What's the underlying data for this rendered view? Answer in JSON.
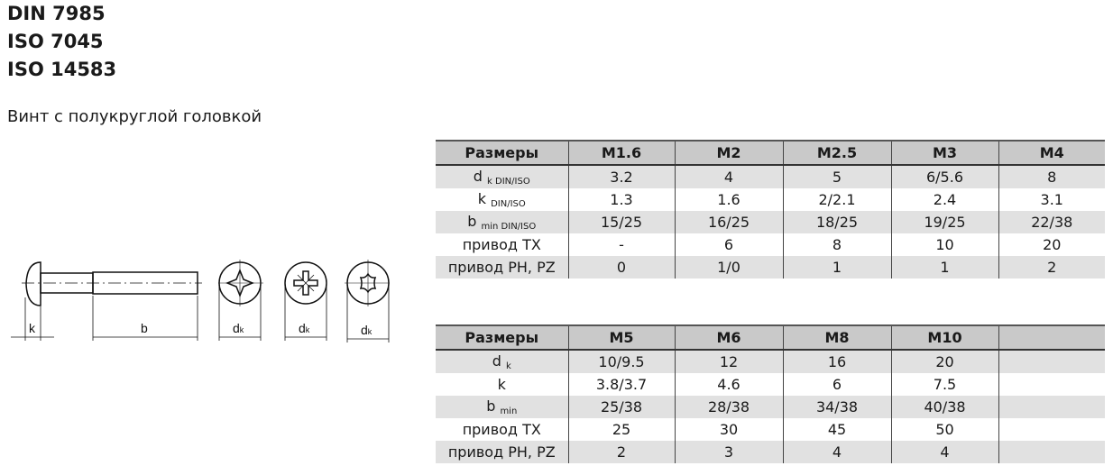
{
  "standards": [
    "DIN 7985",
    "ISO 7045",
    "ISO 14583"
  ],
  "subtitle": "Винт с полукруглой головкой",
  "drawing": {
    "labels": {
      "k": "k",
      "b": "b",
      "dk": "d",
      "dk_sub": "k"
    },
    "views": [
      "phillips-cross-recess",
      "pozidriv-recess",
      "torx-recess"
    ]
  },
  "table1": {
    "header": [
      "Размеры",
      "M1.6",
      "M2",
      "M2.5",
      "M3",
      "M4"
    ],
    "rows": [
      {
        "label": "d",
        "label_sub": "k DIN/ISO",
        "values": [
          "3.2",
          "4",
          "5",
          "6/5.6",
          "8"
        ]
      },
      {
        "label": "k",
        "label_sub": "DIN/ISO",
        "values": [
          "1.3",
          "1.6",
          "2/2.1",
          "2.4",
          "3.1"
        ]
      },
      {
        "label": "b",
        "label_sub": "min DIN/ISO",
        "values": [
          "15/25",
          "16/25",
          "18/25",
          "19/25",
          "22/38"
        ]
      },
      {
        "label": "привод TX",
        "label_sub": "",
        "values": [
          "-",
          "6",
          "8",
          "10",
          "20"
        ]
      },
      {
        "label": "привод PH, PZ",
        "label_sub": "",
        "values": [
          "0",
          "1/0",
          "1",
          "1",
          "2"
        ]
      }
    ]
  },
  "table2": {
    "header": [
      "Размеры",
      "M5",
      "M6",
      "M8",
      "M10",
      ""
    ],
    "rows": [
      {
        "label": "d",
        "label_sub": "k",
        "values": [
          "10/9.5",
          "12",
          "16",
          "20",
          ""
        ]
      },
      {
        "label": "k",
        "label_sub": "",
        "values": [
          "3.8/3.7",
          "4.6",
          "6",
          "7.5",
          ""
        ]
      },
      {
        "label": "b",
        "label_sub": "min",
        "values": [
          "25/38",
          "28/38",
          "34/38",
          "40/38",
          ""
        ]
      },
      {
        "label": "привод TX",
        "label_sub": "",
        "values": [
          "25",
          "30",
          "45",
          "50",
          ""
        ]
      },
      {
        "label": "привод PH, PZ",
        "label_sub": "",
        "values": [
          "2",
          "3",
          "4",
          "4",
          ""
        ]
      }
    ]
  },
  "colors": {
    "header_bg": "#c9c9c9",
    "alt_row_bg": "#e1e1e1"
  }
}
